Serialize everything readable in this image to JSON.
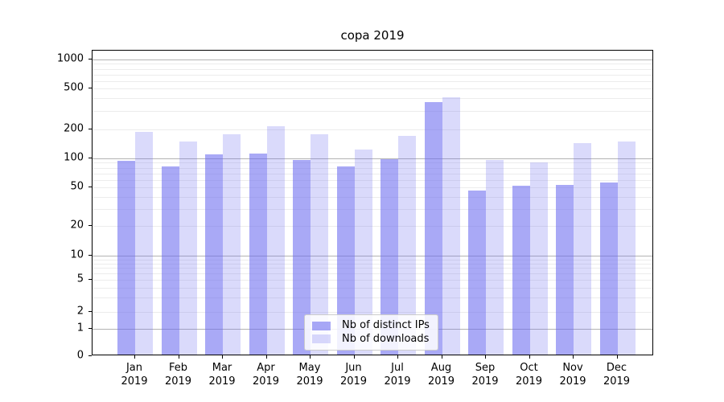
{
  "title": "copa 2019",
  "chart_data": {
    "type": "bar",
    "title": "copa 2019",
    "categories": [
      "Jan 2019",
      "Feb 2019",
      "Mar 2019",
      "Apr 2019",
      "May 2019",
      "Jun 2019",
      "Jul 2019",
      "Aug 2019",
      "Sep 2019",
      "Oct 2019",
      "Nov 2019",
      "Dec 2019"
    ],
    "series": [
      {
        "name": "Nb of distinct IPs",
        "color": "rgba(106,106,240,0.58)",
        "values": [
          90,
          80,
          105,
          108,
          92,
          80,
          94,
          355,
          45,
          50,
          51,
          54
        ]
      },
      {
        "name": "Nb of downloads",
        "color": "rgba(106,106,240,0.25)",
        "values": [
          180,
          143,
          170,
          207,
          171,
          120,
          165,
          398,
          92,
          88,
          140,
          145
        ]
      }
    ],
    "yscale": "symlog",
    "ylim": [
      0,
      1230
    ],
    "yticks": [
      0,
      1,
      2,
      5,
      10,
      20,
      50,
      100,
      200,
      500,
      1000
    ],
    "grid": true,
    "legend_position": "lower center",
    "colors": {
      "bar_base": "#6a6af0",
      "grid_major": "#b3b3b3",
      "grid_minor": "#ececec",
      "axis": "#000000"
    }
  }
}
